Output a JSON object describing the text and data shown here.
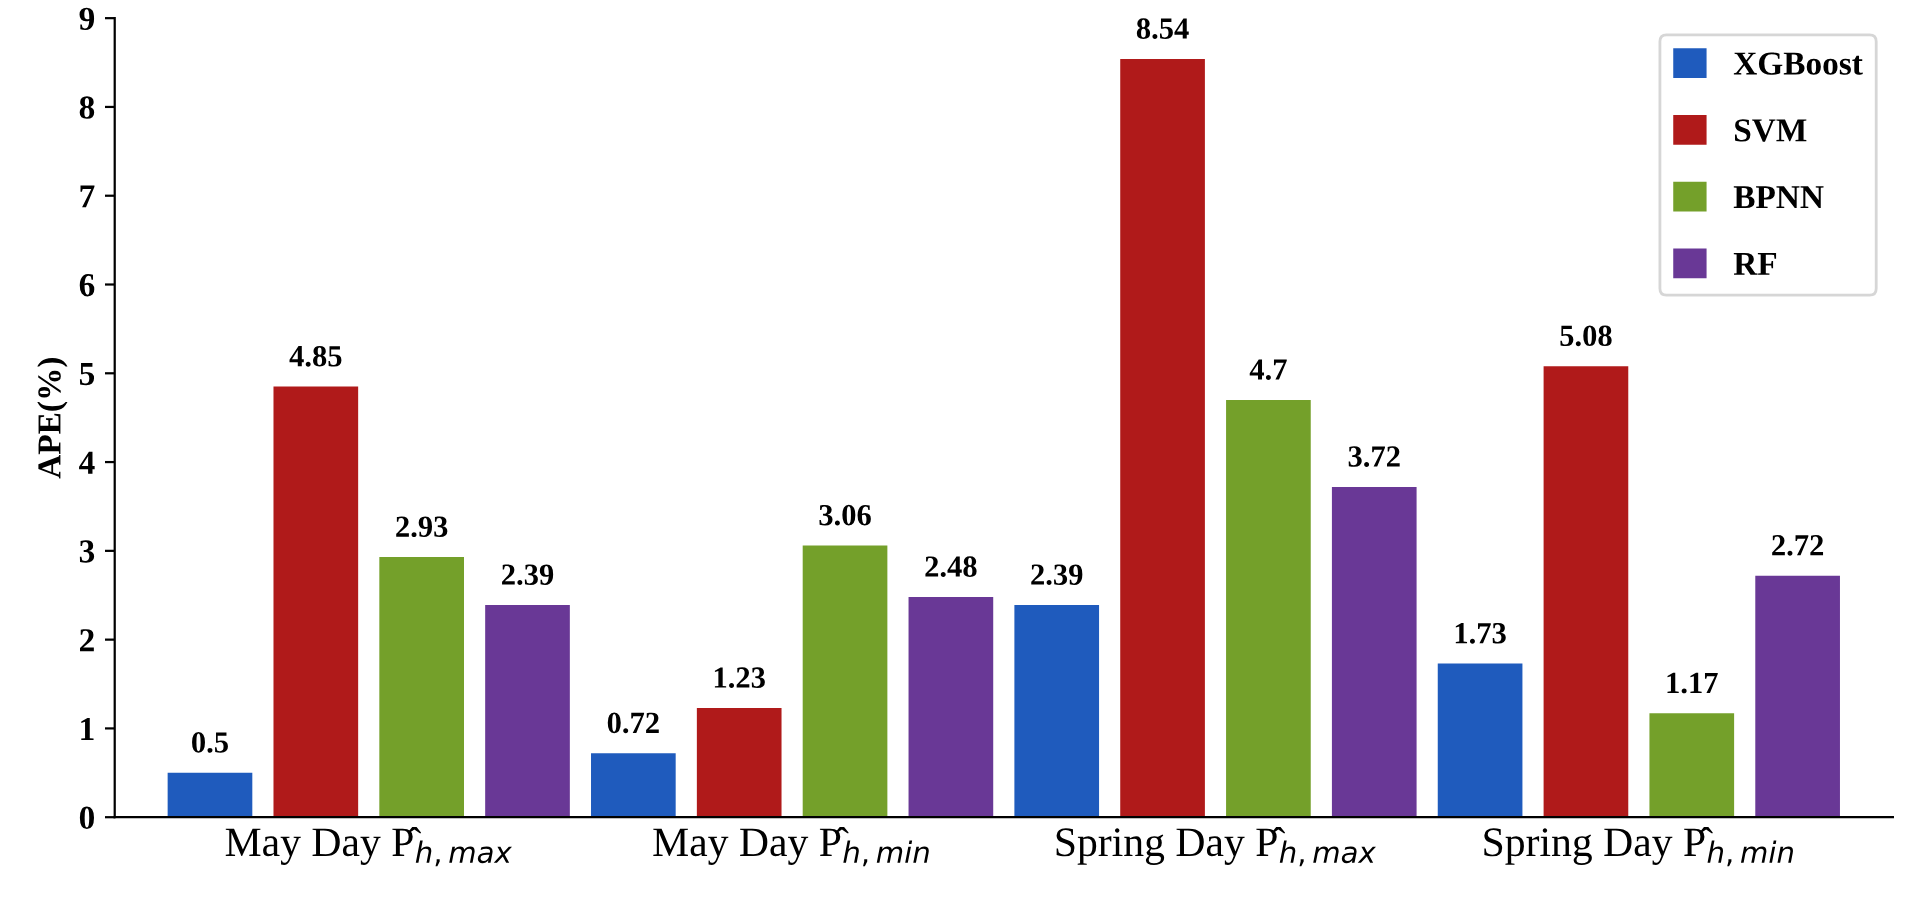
{
  "chart_data": {
    "type": "bar",
    "ylabel": "APE(%)",
    "categories": [
      "May Day P̂$_{h,max}$",
      "May Day P̂$_{h,min}$",
      "Spring Day P̂$_{h,max}$",
      "Spring Day P̂$_{h,min}$"
    ],
    "series": [
      {
        "name": "XGBoost",
        "color": "#1f5bbd",
        "values": [
          0.5,
          0.72,
          2.39,
          1.73
        ]
      },
      {
        "name": "SVM",
        "color": "#b01a1a",
        "values": [
          4.85,
          1.23,
          8.54,
          5.08
        ]
      },
      {
        "name": "BPNN",
        "color": "#74a02a",
        "values": [
          2.93,
          3.06,
          4.7,
          1.17
        ]
      },
      {
        "name": "RF",
        "color": "#693896",
        "values": [
          2.39,
          2.48,
          3.72,
          2.72
        ]
      }
    ],
    "ylim": [
      0,
      9
    ],
    "yticks": [
      0,
      1,
      2,
      3,
      4,
      5,
      6,
      7,
      8,
      9
    ],
    "data_labels": true,
    "legend": "top right",
    "grid": false
  }
}
